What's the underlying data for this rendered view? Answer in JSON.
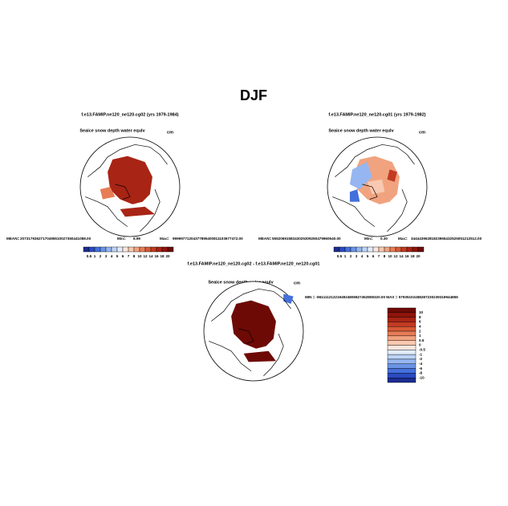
{
  "title": "DJF",
  "panels": [
    {
      "title": "f.e13.FAMIP.ne120_ne120.cg02 (yrs 1979-1984)",
      "field": "Seaice snow depth water equlv",
      "units": "cm",
      "mean_label": "MEAN=",
      "mean": "20731793627170495510027360441088.00",
      "min_label": "Min=",
      "min": "6.99",
      "max_label": "Max=",
      "max": "99999771204377895400811103677472.00"
    },
    {
      "title": "f.e13.FAMIP.ne120_ne120.cg01 (yrs 1979-1982)",
      "field": "Seaice snow depth water equlv",
      "units": "cm",
      "mean_label": "MEAN=",
      "mean": "5552069158343025309260479960640.00",
      "min_label": "Min=",
      "min": "0.30",
      "max_label": "Max=",
      "max": "34444396281823965432525051212512.00"
    }
  ],
  "colorbar": {
    "labels": [
      "0.5",
      "1",
      "2",
      "3",
      "4",
      "5",
      "6",
      "7",
      "8",
      "10",
      "12",
      "14",
      "16",
      "18",
      "20"
    ],
    "colors": [
      "#1b2c8f",
      "#2a4bc2",
      "#4470dc",
      "#6a93e6",
      "#95b6f0",
      "#bcd3f6",
      "#e2ecfb",
      "#fbe6dc",
      "#f8c8b0",
      "#f1a37f",
      "#e67d56",
      "#d65a36",
      "#c23b22",
      "#a82415",
      "#8e140b",
      "#6e0a05"
    ]
  },
  "difference": {
    "title": "f.e13.FAMIP.ne120_ne120.cg02 - f.e13.FAMIP.ne120_ne120.cg01",
    "field": "Seaice snow depth water equlv",
    "units": "cm",
    "stats": "MIN = -8611112122194924806827452808320.00  MAX = 57935102458287230239319944855",
    "colorbar": {
      "labels": [
        "10",
        "8",
        "6",
        "4",
        "2",
        "1",
        "0.5",
        "0",
        "-0.5",
        "-1",
        "-2",
        "-4",
        "-6",
        "-8",
        "-10"
      ],
      "colors": [
        "#6e0a05",
        "#8e140b",
        "#a82415",
        "#c23b22",
        "#d65a36",
        "#e67d56",
        "#f1a37f",
        "#f8c8b0",
        "#fbe6dc",
        "#e2ecfb",
        "#bcd3f6",
        "#95b6f0",
        "#6a93e6",
        "#4470dc",
        "#2a4bc2",
        "#1b2c8f"
      ]
    }
  }
}
